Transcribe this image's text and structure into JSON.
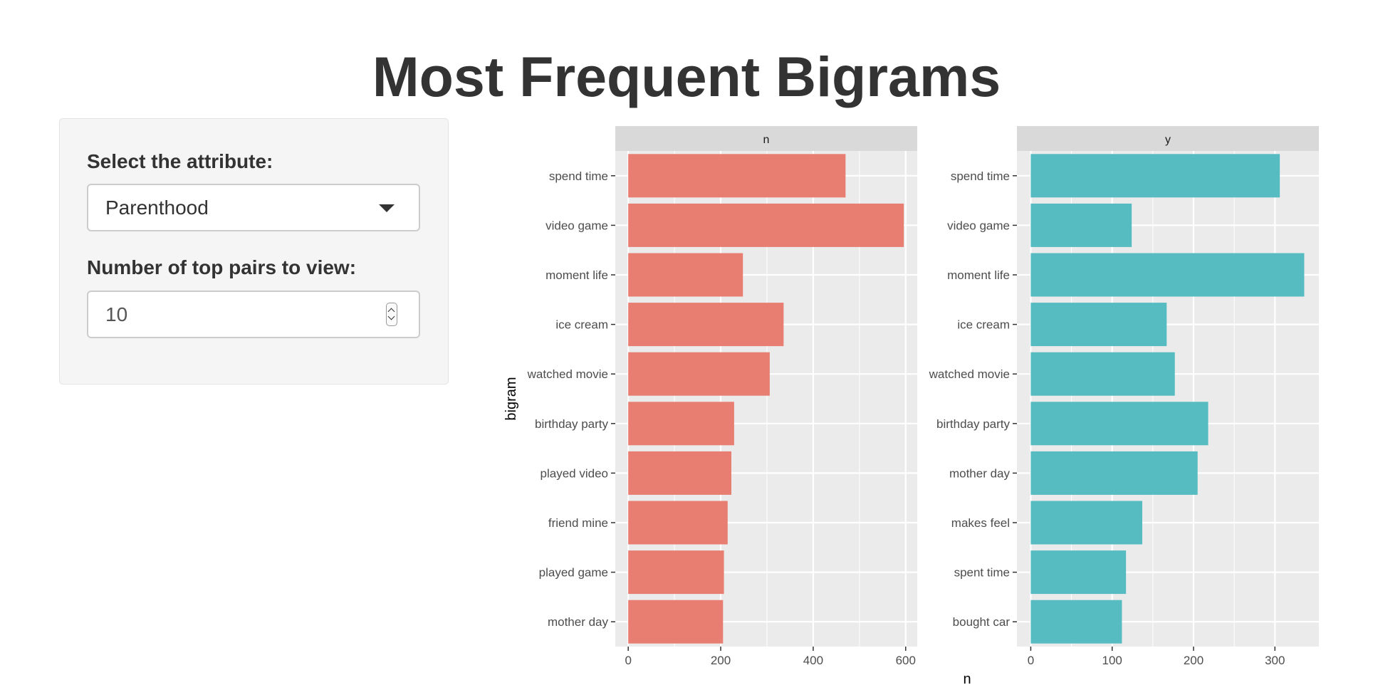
{
  "page": {
    "title": "Most Frequent Bigrams"
  },
  "sidebar": {
    "attribute_label": "Select the attribute:",
    "attribute_value": "Parenthood",
    "pairs_label": "Number of top pairs to view:",
    "pairs_value": "10"
  },
  "colors": {
    "panel_n": "#E87D72",
    "panel_y": "#56BCC2",
    "panel_bg": "#EBEBEB",
    "strip_bg": "#D9D9D9"
  },
  "icons": {
    "select_caret": "caret-down-icon",
    "number_spinner": "spinner-icon"
  },
  "chart_data": {
    "type": "bar",
    "orientation": "horizontal",
    "xlabel": "n",
    "ylabel": "bigram",
    "grid": true,
    "legend": "none",
    "panels": [
      {
        "name": "n",
        "categories": [
          "spend time",
          "video game",
          "moment life",
          "ice cream",
          "watched movie",
          "birthday party",
          "played video",
          "friend mine",
          "played game",
          "mother day"
        ],
        "values": [
          470,
          596,
          248,
          336,
          306,
          229,
          223,
          215,
          207,
          205
        ],
        "xlim": [
          -28,
          625
        ],
        "xticks": [
          0,
          200,
          400,
          600
        ]
      },
      {
        "name": "y",
        "categories": [
          "spend time",
          "video game",
          "moment life",
          "ice cream",
          "watched movie",
          "birthday party",
          "mother day",
          "makes feel",
          "spent time",
          "bought car"
        ],
        "values": [
          306,
          124,
          336,
          167,
          177,
          218,
          205,
          137,
          117,
          112
        ],
        "xlim": [
          -17,
          354
        ],
        "xticks": [
          0,
          100,
          200,
          300
        ]
      }
    ]
  }
}
